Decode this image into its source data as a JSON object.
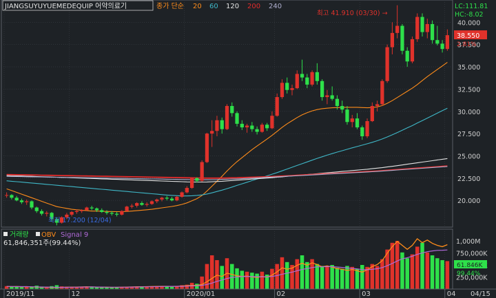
{
  "header": {
    "symbol": "JIANGSUYUYUEMEDEQUIP",
    "menu": "어약의료기",
    "ma_label": "종가 단순",
    "ma_periods": [
      {
        "label": "20",
        "color": "#ff8c1a"
      },
      {
        "label": "60",
        "color": "#3fb8c8"
      },
      {
        "label": "120",
        "color": "#e6e6e6"
      },
      {
        "label": "200",
        "color": "#e22b2b"
      },
      {
        "label": "240",
        "color": "#b0b0d0"
      }
    ]
  },
  "price_panel": {
    "lc": "LC:111.81",
    "hc": "HC:-8.02",
    "last_price": "38.550",
    "last_change": "2.81%",
    "high_note": "최고 41.910 (03/30) →",
    "low_note": "최저 17.200 (12/04)",
    "y_ticks": [
      "40.000",
      "37.500",
      "35.000",
      "32.500",
      "30.000",
      "27.500",
      "25.000",
      "22.500",
      "20.000"
    ],
    "y_values": [
      40,
      37.5,
      35,
      32.5,
      30,
      27.5,
      25,
      22.5,
      20
    ]
  },
  "volume_panel": {
    "title": "거래량",
    "obv": "OBV",
    "signal": "Signal 9",
    "value": "61,846,351주(99.44%)",
    "y_ticks": [
      "1,000M",
      "750,000K",
      "500,000K",
      "250,000K"
    ],
    "y_values": [
      1000,
      750,
      500,
      250
    ],
    "last_obv": "61.846K",
    "last_pct": "99.44%"
  },
  "x_axis": {
    "labels": [
      "2019/11",
      "12",
      "2020/01",
      "02",
      "03",
      "04",
      "04/15"
    ]
  },
  "colors": {
    "up": "#e0322b",
    "down": "#2ee04a",
    "grid": "#3a3f45",
    "bg": "#1e2226"
  },
  "chart_data": {
    "type": "candlestick",
    "unit": "price",
    "candles": [
      [
        20.6,
        20.9,
        20.3,
        20.6
      ],
      [
        20.6,
        20.7,
        20.1,
        20.3
      ],
      [
        20.3,
        20.5,
        19.9,
        20.0
      ],
      [
        20.0,
        20.2,
        19.6,
        19.8
      ],
      [
        19.8,
        20.1,
        19.5,
        19.9
      ],
      [
        19.9,
        20.0,
        19.0,
        19.2
      ],
      [
        19.2,
        19.3,
        18.6,
        18.8
      ],
      [
        18.8,
        19.0,
        18.3,
        18.5
      ],
      [
        18.5,
        18.8,
        18.2,
        18.6
      ],
      [
        18.6,
        18.7,
        17.6,
        17.9
      ],
      [
        17.9,
        18.1,
        17.2,
        17.5
      ],
      [
        17.5,
        18.2,
        17.4,
        18.1
      ],
      [
        18.1,
        18.6,
        17.9,
        18.4
      ],
      [
        18.4,
        18.8,
        18.2,
        18.7
      ],
      [
        18.7,
        19.0,
        18.5,
        18.8
      ],
      [
        18.8,
        19.0,
        18.6,
        18.9
      ],
      [
        18.9,
        19.3,
        18.8,
        19.2
      ],
      [
        19.2,
        19.4,
        18.9,
        19.1
      ],
      [
        19.1,
        19.2,
        18.7,
        18.9
      ],
      [
        18.9,
        19.1,
        18.6,
        18.7
      ],
      [
        18.7,
        18.9,
        18.4,
        18.6
      ],
      [
        18.6,
        18.8,
        18.3,
        18.5
      ],
      [
        18.5,
        18.7,
        18.2,
        18.4
      ],
      [
        18.4,
        18.9,
        18.3,
        18.8
      ],
      [
        18.8,
        19.4,
        18.7,
        19.3
      ],
      [
        19.3,
        19.6,
        19.1,
        19.4
      ],
      [
        19.4,
        19.8,
        19.2,
        19.7
      ],
      [
        19.7,
        19.9,
        19.4,
        19.5
      ],
      [
        19.5,
        19.8,
        19.3,
        19.6
      ],
      [
        19.6,
        20.0,
        19.5,
        19.9
      ],
      [
        19.9,
        20.2,
        19.7,
        20.1
      ],
      [
        20.1,
        20.4,
        19.9,
        20.3
      ],
      [
        20.3,
        20.5,
        20.0,
        20.2
      ],
      [
        20.2,
        20.4,
        19.9,
        20.0
      ],
      [
        20.0,
        20.5,
        19.9,
        20.4
      ],
      [
        20.4,
        21.0,
        20.3,
        20.9
      ],
      [
        20.9,
        21.6,
        20.8,
        21.4
      ],
      [
        21.4,
        22.6,
        21.3,
        22.5
      ],
      [
        22.5,
        22.6,
        22.0,
        22.2
      ],
      [
        22.2,
        24.5,
        22.1,
        24.3
      ],
      [
        24.3,
        27.6,
        24.2,
        27.5
      ],
      [
        27.5,
        29.0,
        26.0,
        27.8
      ],
      [
        27.8,
        29.5,
        27.2,
        29.0
      ],
      [
        29.0,
        29.3,
        27.5,
        28.0
      ],
      [
        28.0,
        30.8,
        27.9,
        30.6
      ],
      [
        30.6,
        31.0,
        29.4,
        29.8
      ],
      [
        29.8,
        30.0,
        28.3,
        28.6
      ],
      [
        28.6,
        29.0,
        27.9,
        28.2
      ],
      [
        28.2,
        28.6,
        27.6,
        28.4
      ],
      [
        28.4,
        28.8,
        27.7,
        28.0
      ],
      [
        28.0,
        28.3,
        27.4,
        27.7
      ],
      [
        27.7,
        28.7,
        27.6,
        28.5
      ],
      [
        28.5,
        28.7,
        27.8,
        28.1
      ],
      [
        28.1,
        30.0,
        28.0,
        29.5
      ],
      [
        29.5,
        32.0,
        29.4,
        31.6
      ],
      [
        31.6,
        33.6,
        31.4,
        33.2
      ],
      [
        33.2,
        33.8,
        32.0,
        32.4
      ],
      [
        32.4,
        33.0,
        31.8,
        32.6
      ],
      [
        32.6,
        34.6,
        32.5,
        34.2
      ],
      [
        34.2,
        35.8,
        33.4,
        33.8
      ],
      [
        33.8,
        34.2,
        32.6,
        33.0
      ],
      [
        33.0,
        34.6,
        32.8,
        34.4
      ],
      [
        34.4,
        35.4,
        33.0,
        33.4
      ],
      [
        33.4,
        33.6,
        31.2,
        31.6
      ],
      [
        31.6,
        32.4,
        30.8,
        31.8
      ],
      [
        31.8,
        32.8,
        31.2,
        31.4
      ],
      [
        31.4,
        31.8,
        30.2,
        30.6
      ],
      [
        30.6,
        31.2,
        29.8,
        30.2
      ],
      [
        30.2,
        30.6,
        28.5,
        28.8
      ],
      [
        28.8,
        29.6,
        28.2,
        29.2
      ],
      [
        29.2,
        29.8,
        28.0,
        28.2
      ],
      [
        28.2,
        28.4,
        26.8,
        27.2
      ],
      [
        27.2,
        29.2,
        27.0,
        28.9
      ],
      [
        28.9,
        31.0,
        28.8,
        30.6
      ],
      [
        30.6,
        31.2,
        30.0,
        30.8
      ],
      [
        30.8,
        33.6,
        30.6,
        33.4
      ],
      [
        33.4,
        37.5,
        33.2,
        37.2
      ],
      [
        37.2,
        40.0,
        36.4,
        38.8
      ],
      [
        38.8,
        41.91,
        38.2,
        39.6
      ],
      [
        39.6,
        39.8,
        36.4,
        36.8
      ],
      [
        36.8,
        37.2,
        35.0,
        35.6
      ],
      [
        35.6,
        38.4,
        35.4,
        38.1
      ],
      [
        38.1,
        41.0,
        37.8,
        40.6
      ],
      [
        40.6,
        41.0,
        38.4,
        38.9
      ],
      [
        38.9,
        40.4,
        38.2,
        39.8
      ],
      [
        39.8,
        40.2,
        37.6,
        38.0
      ],
      [
        38.0,
        39.6,
        37.4,
        37.6
      ],
      [
        37.6,
        38.0,
        36.6,
        37.0
      ],
      [
        37.0,
        39.2,
        36.8,
        38.55
      ]
    ],
    "ma_series": [
      {
        "name": "20",
        "values": [
          21.3,
          21.1,
          20.9,
          20.7,
          20.5,
          20.3,
          20.1,
          19.9,
          19.7,
          19.5,
          19.3,
          19.2,
          19.1,
          19.0,
          18.95,
          18.9,
          18.85,
          18.8,
          18.8,
          18.78,
          18.76,
          18.75,
          18.74,
          18.74,
          18.76,
          18.8,
          18.85,
          18.9,
          18.95,
          19.0,
          19.08,
          19.16,
          19.24,
          19.32,
          19.42,
          19.55,
          19.72,
          19.95,
          20.2,
          20.55,
          21.05,
          21.6,
          22.15,
          22.7,
          23.3,
          23.85,
          24.35,
          24.8,
          25.25,
          25.7,
          26.1,
          26.5,
          26.9,
          27.3,
          27.75,
          28.2,
          28.6,
          28.95,
          29.3,
          29.6,
          29.85,
          30.05,
          30.2,
          30.3,
          30.35,
          30.4,
          30.42,
          30.44,
          30.45,
          30.45,
          30.45,
          30.42,
          30.4,
          30.42,
          30.5,
          30.65,
          30.9,
          31.2,
          31.55,
          31.9,
          32.25,
          32.6,
          33.0,
          33.45,
          33.9,
          34.3,
          34.7,
          35.1,
          35.5
        ]
      },
      {
        "name": "60",
        "values": [
          22.2,
          22.15,
          22.1,
          22.05,
          22.0,
          21.95,
          21.9,
          21.85,
          21.8,
          21.75,
          21.7,
          21.65,
          21.6,
          21.55,
          21.5,
          21.45,
          21.4,
          21.35,
          21.3,
          21.25,
          21.2,
          21.15,
          21.1,
          21.05,
          21.0,
          20.95,
          20.9,
          20.85,
          20.8,
          20.75,
          20.7,
          20.65,
          20.6,
          20.56,
          20.53,
          20.5,
          20.5,
          20.52,
          20.56,
          20.62,
          20.72,
          20.85,
          21.0,
          21.15,
          21.32,
          21.5,
          21.68,
          21.86,
          22.04,
          22.22,
          22.4,
          22.58,
          22.76,
          22.94,
          23.12,
          23.32,
          23.52,
          23.72,
          23.92,
          24.12,
          24.32,
          24.52,
          24.72,
          24.9,
          25.08,
          25.25,
          25.42,
          25.58,
          25.74,
          25.9,
          26.05,
          26.2,
          26.36,
          26.52,
          26.7,
          26.9,
          27.12,
          27.36,
          27.62,
          27.88,
          28.14,
          28.4,
          28.68,
          28.96,
          29.24,
          29.52,
          29.8,
          30.08,
          30.35
        ]
      },
      {
        "name": "120",
        "values": [
          22.8,
          22.78,
          22.76,
          22.74,
          22.72,
          22.7,
          22.68,
          22.66,
          22.64,
          22.62,
          22.6,
          22.58,
          22.56,
          22.54,
          22.52,
          22.5,
          22.48,
          22.46,
          22.44,
          22.42,
          22.4,
          22.38,
          22.36,
          22.34,
          22.32,
          22.3,
          22.28,
          22.26,
          22.24,
          22.22,
          22.2,
          22.18,
          22.16,
          22.14,
          22.12,
          22.1,
          22.08,
          22.07,
          22.06,
          22.06,
          22.07,
          22.09,
          22.12,
          22.15,
          22.19,
          22.23,
          22.27,
          22.31,
          22.35,
          22.39,
          22.43,
          22.47,
          22.51,
          22.55,
          22.6,
          22.65,
          22.7,
          22.75,
          22.8,
          22.85,
          22.9,
          22.95,
          23.0,
          23.05,
          23.1,
          23.15,
          23.2,
          23.25,
          23.3,
          23.35,
          23.4,
          23.45,
          23.5,
          23.56,
          23.62,
          23.68,
          23.75,
          23.82,
          23.9,
          23.98,
          24.06,
          24.14,
          24.22,
          24.3,
          24.38,
          24.46,
          24.54,
          24.62,
          24.7
        ]
      },
      {
        "name": "200",
        "values": [
          22.9,
          22.89,
          22.88,
          22.87,
          22.86,
          22.85,
          22.84,
          22.83,
          22.82,
          22.81,
          22.8,
          22.79,
          22.78,
          22.77,
          22.76,
          22.75,
          22.74,
          22.73,
          22.72,
          22.71,
          22.7,
          22.69,
          22.68,
          22.67,
          22.66,
          22.65,
          22.64,
          22.63,
          22.62,
          22.61,
          22.6,
          22.59,
          22.58,
          22.57,
          22.56,
          22.55,
          22.54,
          22.53,
          22.52,
          22.51,
          22.5,
          22.5,
          22.5,
          22.51,
          22.52,
          22.53,
          22.54,
          22.56,
          22.58,
          22.6,
          22.62,
          22.64,
          22.66,
          22.68,
          22.7,
          22.73,
          22.76,
          22.79,
          22.82,
          22.85,
          22.88,
          22.91,
          22.94,
          22.97,
          23.0,
          23.03,
          23.06,
          23.09,
          23.12,
          23.15,
          23.18,
          23.21,
          23.24,
          23.27,
          23.3,
          23.34,
          23.38,
          23.42,
          23.46,
          23.5,
          23.54,
          23.58,
          23.62,
          23.66,
          23.7,
          23.74,
          23.78,
          23.82,
          23.86
        ]
      },
      {
        "name": "240",
        "values": [
          22.7,
          22.69,
          22.68,
          22.67,
          22.66,
          22.65,
          22.64,
          22.63,
          22.62,
          22.61,
          22.6,
          22.59,
          22.58,
          22.57,
          22.56,
          22.55,
          22.54,
          22.53,
          22.52,
          22.51,
          22.5,
          22.49,
          22.48,
          22.47,
          22.46,
          22.45,
          22.44,
          22.43,
          22.42,
          22.41,
          22.4,
          22.39,
          22.38,
          22.37,
          22.36,
          22.35,
          22.34,
          22.33,
          22.32,
          22.32,
          22.32,
          22.33,
          22.34,
          22.36,
          22.38,
          22.4,
          22.42,
          22.44,
          22.47,
          22.5,
          22.53,
          22.56,
          22.59,
          22.62,
          22.65,
          22.68,
          22.71,
          22.74,
          22.77,
          22.8,
          22.83,
          22.86,
          22.89,
          22.92,
          22.95,
          22.98,
          23.01,
          23.04,
          23.07,
          23.1,
          23.13,
          23.16,
          23.19,
          23.22,
          23.25,
          23.29,
          23.33,
          23.37,
          23.41,
          23.45,
          23.49,
          23.53,
          23.57,
          23.61,
          23.65,
          23.69,
          23.73,
          23.77,
          23.81
        ]
      }
    ],
    "volume": [
      60,
      45,
      50,
      40,
      55,
      48,
      70,
      52,
      45,
      60,
      80,
      55,
      50,
      42,
      38,
      45,
      40,
      35,
      38,
      32,
      30,
      35,
      30,
      40,
      45,
      50,
      48,
      42,
      46,
      52,
      58,
      54,
      50,
      46,
      62,
      80,
      90,
      130,
      110,
      260,
      520,
      700,
      600,
      480,
      640,
      520,
      430,
      380,
      360,
      340,
      320,
      360,
      300,
      420,
      520,
      660,
      560,
      500,
      620,
      700,
      560,
      620,
      520,
      480,
      460,
      500,
      440,
      420,
      480,
      460,
      420,
      500,
      460,
      520,
      480,
      620,
      820,
      960,
      1000,
      760,
      640,
      720,
      880,
      960,
      760,
      700,
      640,
      600,
      580
    ],
    "obv": [
      20,
      18,
      19,
      17,
      18,
      16,
      15,
      14,
      14,
      12,
      11,
      13,
      14,
      15,
      15,
      16,
      17,
      16,
      15,
      14,
      14,
      13,
      13,
      14,
      15,
      16,
      17,
      17,
      18,
      19,
      20,
      21,
      21,
      20,
      21,
      23,
      25,
      28,
      27,
      35,
      55,
      80,
      105,
      95,
      120,
      110,
      100,
      95,
      98,
      92,
      88,
      95,
      90,
      105,
      130,
      160,
      150,
      158,
      180,
      195,
      180,
      198,
      185,
      168,
      175,
      165,
      155,
      150,
      140,
      148,
      138,
      128,
      145,
      170,
      185,
      215,
      270,
      320,
      360,
      330,
      300,
      330,
      380,
      350,
      370,
      345,
      330,
      320,
      335
    ],
    "obv_signal": [
      19,
      19,
      18,
      18,
      18,
      17,
      16,
      15,
      15,
      14,
      13,
      13,
      13,
      14,
      14,
      15,
      15,
      16,
      15,
      15,
      14,
      14,
      14,
      14,
      14,
      15,
      15,
      16,
      17,
      17,
      18,
      19,
      20,
      20,
      20,
      21,
      22,
      24,
      25,
      28,
      35,
      45,
      58,
      68,
      80,
      88,
      92,
      94,
      95,
      94,
      93,
      93,
      92,
      95,
      102,
      112,
      120,
      128,
      138,
      148,
      155,
      162,
      168,
      168,
      170,
      169,
      166,
      163,
      159,
      156,
      152,
      147,
      146,
      149,
      154,
      162,
      176,
      193,
      212,
      228,
      237,
      248,
      262,
      272,
      282,
      288,
      292,
      293,
      295
    ]
  }
}
